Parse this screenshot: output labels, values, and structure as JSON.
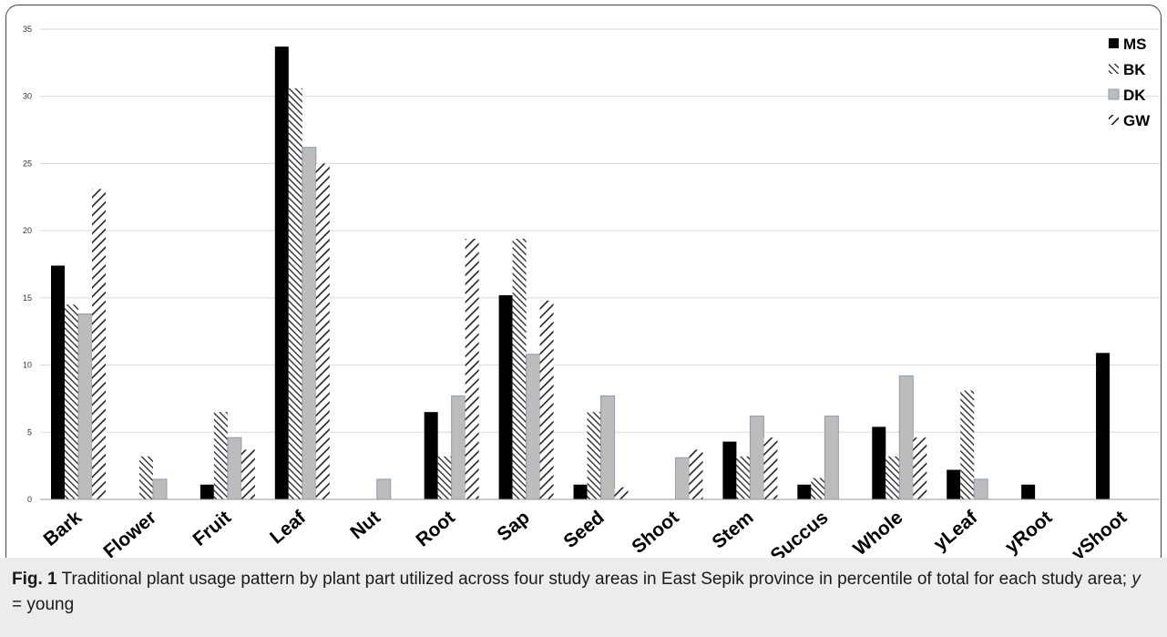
{
  "chart_data": {
    "type": "bar",
    "categories": [
      "Bark",
      "Flower",
      "Fruit",
      "Leaf",
      "Nut",
      "Root",
      "Sap",
      "Seed",
      "Shoot",
      "Stem",
      "Succus",
      "Whole",
      "yLeaf",
      "yRoot",
      "yShoot"
    ],
    "series": [
      {
        "name": "MS",
        "values": [
          17.4,
          0,
          1.1,
          33.7,
          0,
          6.5,
          15.2,
          1.1,
          0,
          4.3,
          1.1,
          5.4,
          2.2,
          1.1,
          10.9
        ]
      },
      {
        "name": "BK",
        "values": [
          14.5,
          3.2,
          6.5,
          30.6,
          0,
          3.2,
          19.4,
          6.5,
          0,
          3.2,
          1.6,
          3.2,
          8.1,
          0,
          0
        ]
      },
      {
        "name": "DK",
        "values": [
          13.8,
          1.5,
          4.6,
          26.2,
          1.5,
          7.7,
          10.8,
          7.7,
          3.1,
          6.2,
          6.2,
          9.2,
          1.5,
          0,
          0
        ]
      },
      {
        "name": "GW",
        "values": [
          23.1,
          0,
          3.7,
          25.0,
          0,
          19.4,
          14.8,
          0.9,
          3.7,
          4.6,
          0,
          4.6,
          0,
          0,
          0
        ]
      }
    ],
    "ylim": [
      0,
      35
    ],
    "yticks": [
      0,
      5,
      10,
      15,
      20,
      25,
      30,
      35
    ],
    "grid": true,
    "legend": "top-right",
    "colors": {
      "MS": "#000000",
      "BK": "#222222",
      "DK": "#bcbcbc",
      "GW": "#222222"
    },
    "patterns": {
      "MS": "solid",
      "BK": "dense-backslash-hatch",
      "DK": "solid",
      "GW": "slash-hatch"
    }
  },
  "caption": {
    "label": "Fig. 1",
    "text_before": " Traditional plant usage pattern by plant part utilized across four study areas in East Sepik province in percentile of total for each study area; ",
    "y_italic": "y",
    "text_after": " = young"
  }
}
